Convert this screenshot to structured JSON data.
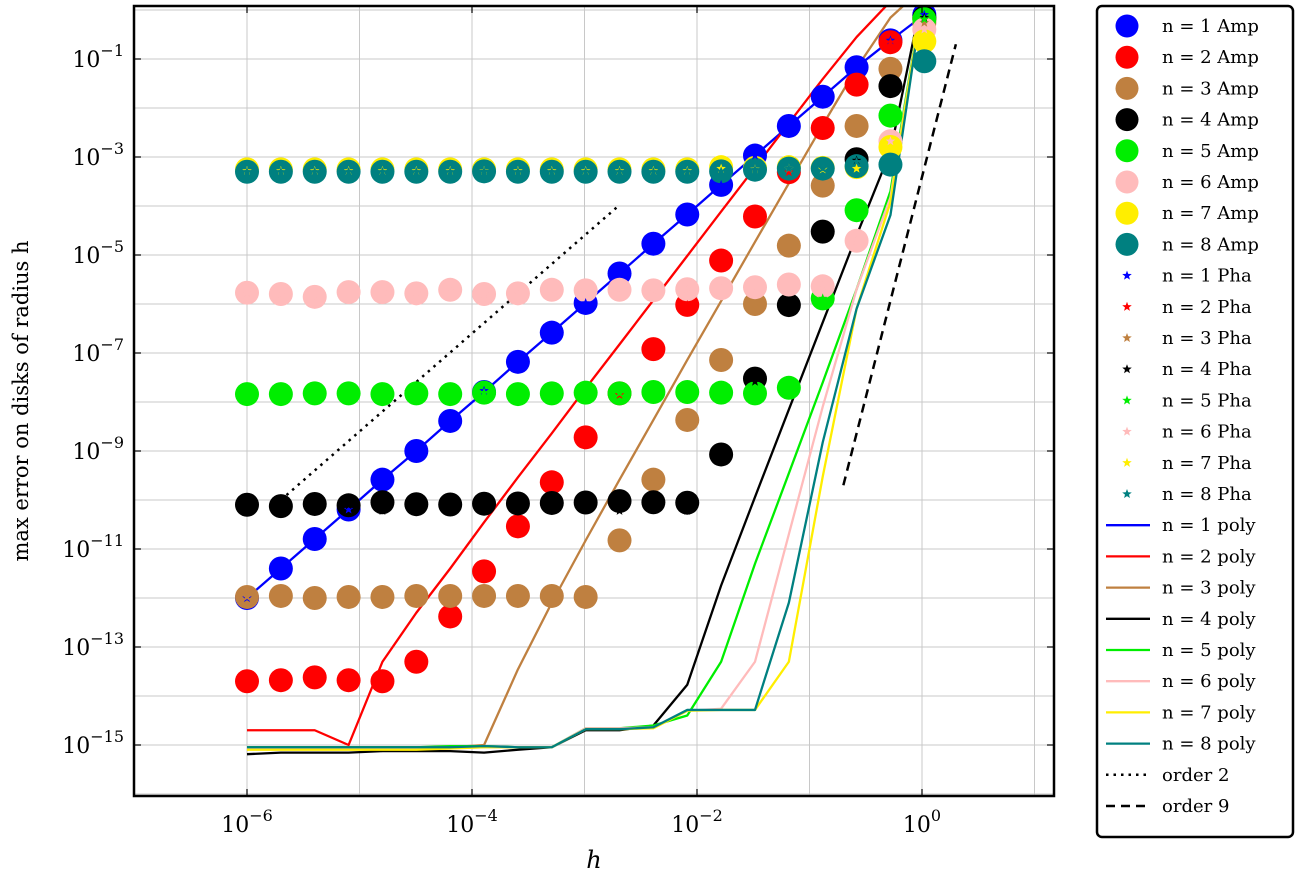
{
  "chart_data": {
    "type": "line",
    "xscale": "log",
    "yscale": "log",
    "xlabel": "h",
    "ylabel": "max error on disks of radius h",
    "xlim": [
      1.5e-07,
      20.0
    ],
    "ylim": [
      1e-16,
      1.0
    ],
    "grid": true,
    "legend_placement": "right-outside",
    "x_ticks": [
      {
        "value": 1e-06,
        "mant": "10",
        "exp": "−6"
      },
      {
        "value": 0.0001,
        "mant": "10",
        "exp": "−4"
      },
      {
        "value": 0.01,
        "mant": "10",
        "exp": "−2"
      },
      {
        "value": 1.0,
        "mant": "10",
        "exp": "0"
      }
    ],
    "y_ticks": [
      {
        "value": 1e-15,
        "mant": "10",
        "exp": "−15"
      },
      {
        "value": 1e-13,
        "mant": "10",
        "exp": "−13"
      },
      {
        "value": 1e-11,
        "mant": "10",
        "exp": "−11"
      },
      {
        "value": 1e-09,
        "mant": "10",
        "exp": "−9"
      },
      {
        "value": 1e-07,
        "mant": "10",
        "exp": "−7"
      },
      {
        "value": 1e-05,
        "mant": "10",
        "exp": "−5"
      },
      {
        "value": 0.001,
        "mant": "10",
        "exp": "−3"
      },
      {
        "value": 0.1,
        "mant": "10",
        "exp": "−1"
      }
    ],
    "x": [
      1e-06,
      2e-06,
      4e-06,
      8e-06,
      1.6e-05,
      3.2e-05,
      6.4e-05,
      0.000128,
      0.000256,
      0.000512,
      0.001024,
      0.002048,
      0.004096,
      0.008192,
      0.016384,
      0.032768,
      0.065536,
      0.131072,
      0.262144,
      0.524288,
      1.048576
    ],
    "series": [
      {
        "name": "n = 1 poly",
        "n": 1,
        "color": "#0000ff",
        "kind": "poly",
        "values": [
          1e-12,
          4e-12,
          1.6e-11,
          6.4e-11,
          2.6e-10,
          1e-09,
          4.1e-09,
          1.6e-08,
          6.6e-08,
          2.6e-07,
          1.05e-06,
          4.2e-06,
          1.7e-05,
          6.7e-05,
          0.00027,
          0.00107,
          0.0043,
          0.017,
          0.068,
          0.24,
          0.8
        ]
      },
      {
        "name": "n = 2 poly",
        "n": 2,
        "color": "#ff0000",
        "kind": "poly",
        "values": [
          2e-15,
          2e-15,
          2e-15,
          1e-15,
          5e-14,
          5e-13,
          4e-12,
          3.5e-11,
          2.9e-10,
          2.3e-09,
          1.9e-08,
          1.5e-07,
          1.2e-06,
          9.6e-06,
          7.7e-05,
          0.00061,
          0.0049,
          0.039,
          0.28,
          1.5,
          3.0
        ]
      },
      {
        "name": "n = 3 poly",
        "n": 3,
        "color": "#bf8040",
        "kind": "poly",
        "values": [
          9e-16,
          9e-16,
          9e-16,
          9e-16,
          9e-16,
          9e-16,
          9e-16,
          1e-15,
          3.5e-14,
          8e-13,
          1.5e-11,
          2.6e-10,
          4.3e-09,
          7.2e-08,
          1.15e-06,
          1.85e-05,
          0.00029,
          0.0045,
          0.065,
          0.7,
          3.0
        ]
      },
      {
        "name": "n = 4 poly",
        "n": 4,
        "color": "#000000",
        "kind": "poly",
        "values": [
          6.5e-16,
          7e-16,
          7e-16,
          7e-16,
          7.5e-16,
          7.5e-16,
          7.5e-16,
          7e-16,
          8e-16,
          9e-16,
          2e-15,
          2e-15,
          2.5e-15,
          1.7e-14,
          1.8e-12,
          1.15e-10,
          7e-09,
          4.2e-07,
          2.5e-05,
          0.0013,
          3.0
        ]
      },
      {
        "name": "n = 5 poly",
        "n": 5,
        "color": "#00ee00",
        "kind": "poly",
        "values": [
          9e-16,
          9e-16,
          9e-16,
          9e-16,
          9e-16,
          9e-16,
          9.5e-16,
          9.5e-16,
          9e-16,
          9e-16,
          2.2e-15,
          2.2e-15,
          2.5e-15,
          4e-15,
          5e-14,
          5e-12,
          3.5e-10,
          2.5e-08,
          2e-06,
          0.0002,
          3.0
        ]
      },
      {
        "name": "n = 6 poly",
        "n": 6,
        "color": "#ffbbbb",
        "kind": "poly",
        "values": [
          8.5e-16,
          8.5e-16,
          8.5e-16,
          8.5e-16,
          8.5e-16,
          8.5e-16,
          8.5e-16,
          9e-16,
          9e-16,
          9e-16,
          2.2e-15,
          2.2e-15,
          2.3e-15,
          5e-15,
          5.5e-15,
          5e-14,
          2e-11,
          8e-09,
          2e-06,
          0.00015,
          3.0
        ]
      },
      {
        "name": "n = 7 poly",
        "n": 7,
        "color": "#ffee00",
        "kind": "poly",
        "values": [
          8e-16,
          8e-16,
          8e-16,
          8e-16,
          8e-16,
          8e-16,
          8.5e-16,
          9e-16,
          9e-16,
          9e-16,
          2.1e-15,
          2.1e-15,
          2.2e-15,
          5e-15,
          5.2e-15,
          5.2e-15,
          5e-14,
          3e-10,
          8e-07,
          0.00012,
          3.0
        ]
      },
      {
        "name": "n = 8 poly",
        "n": 8,
        "color": "#008080",
        "kind": "poly",
        "values": [
          9e-16,
          9e-16,
          9e-16,
          9e-16,
          9e-16,
          9e-16,
          9e-16,
          9.5e-16,
          9e-16,
          9e-16,
          2.1e-15,
          2.1e-15,
          2.3e-15,
          5.2e-15,
          5.2e-15,
          5.2e-15,
          8e-13,
          1.5e-09,
          8e-07,
          6.5e-05,
          3.0
        ]
      },
      {
        "name": "n = 1 Amp",
        "n": 1,
        "color": "#0000ff",
        "kind": "amp",
        "values": [
          1e-12,
          4e-12,
          1.6e-11,
          6.4e-11,
          2.6e-10,
          1e-09,
          4.1e-09,
          1.6e-08,
          6.6e-08,
          2.6e-07,
          1.05e-06,
          4.2e-06,
          1.7e-05,
          6.7e-05,
          0.00027,
          0.00107,
          0.0043,
          0.017,
          0.068,
          0.24,
          0.8
        ]
      },
      {
        "name": "n = 2 Amp",
        "n": 2,
        "color": "#ff0000",
        "kind": "amp",
        "values": [
          2e-14,
          2.1e-14,
          2.4e-14,
          2.1e-14,
          2e-14,
          5e-14,
          4.2e-13,
          3.5e-12,
          2.9e-11,
          2.3e-10,
          1.9e-09,
          1.5e-08,
          1.2e-07,
          9.6e-07,
          7.7e-06,
          6.1e-05,
          0.00049,
          0.0039,
          0.03,
          0.22,
          0.65
        ]
      },
      {
        "name": "n = 3 Amp",
        "n": 3,
        "color": "#bf8040",
        "kind": "amp",
        "values": [
          1.05e-12,
          1.1e-12,
          1e-12,
          1.05e-12,
          1.05e-12,
          1.1e-12,
          1.1e-12,
          1.1e-12,
          1.1e-12,
          1.1e-12,
          1.05e-12,
          1.5e-11,
          2.6e-10,
          4.3e-09,
          7.2e-08,
          1e-06,
          1.55e-05,
          0.00026,
          0.0043,
          0.063,
          0.55
        ]
      },
      {
        "name": "n = 4 Amp",
        "n": 4,
        "color": "#000000",
        "kind": "amp",
        "values": [
          8e-11,
          7.5e-11,
          8.3e-11,
          7.8e-11,
          9e-11,
          8.2e-11,
          8.1e-11,
          8.4e-11,
          8.5e-11,
          8.7e-11,
          8.9e-11,
          9.5e-11,
          9e-11,
          8.8e-11,
          8.5e-10,
          3e-08,
          9.5e-07,
          3e-05,
          0.0009,
          0.028,
          0.7
        ]
      },
      {
        "name": "n = 5 Amp",
        "n": 5,
        "color": "#00ee00",
        "kind": "amp",
        "values": [
          1.45e-08,
          1.45e-08,
          1.5e-08,
          1.5e-08,
          1.45e-08,
          1.5e-08,
          1.45e-08,
          1.55e-08,
          1.45e-08,
          1.5e-08,
          1.55e-08,
          1.5e-08,
          1.6e-08,
          1.6e-08,
          1.55e-08,
          1.5e-08,
          1.95e-08,
          1.3e-06,
          8.2e-05,
          0.007,
          0.65
        ]
      },
      {
        "name": "n = 6 Amp",
        "n": 6,
        "color": "#ffbbbb",
        "kind": "amp",
        "values": [
          1.7e-06,
          1.6e-06,
          1.4e-06,
          1.75e-06,
          1.75e-06,
          1.65e-06,
          1.95e-06,
          1.6e-06,
          1.65e-06,
          1.95e-06,
          1.9e-06,
          1.95e-06,
          1.9e-06,
          2e-06,
          2.1e-06,
          2.2e-06,
          2.5e-06,
          2.3e-06,
          1.95e-05,
          0.0021,
          0.4
        ]
      },
      {
        "name": "n = 7 Amp",
        "n": 7,
        "color": "#ffee00",
        "kind": "amp",
        "values": [
          0.00056,
          0.00056,
          0.00056,
          0.00056,
          0.00056,
          0.00056,
          0.00056,
          0.00056,
          0.00056,
          0.00056,
          0.00056,
          0.00056,
          0.00056,
          0.00056,
          0.00062,
          0.0006,
          0.00062,
          0.0006,
          0.00062,
          0.0016,
          0.23
        ]
      },
      {
        "name": "n = 8 Amp",
        "n": 8,
        "color": "#008080",
        "kind": "amp",
        "values": [
          0.0005,
          0.0005,
          0.0005,
          0.0005,
          0.0005,
          0.0005,
          0.0005,
          0.00051,
          0.0005,
          0.0005,
          0.0005,
          0.0005,
          0.0005,
          0.0005,
          0.00051,
          0.00055,
          0.00058,
          0.00058,
          0.00065,
          0.0007,
          0.09
        ]
      },
      {
        "name": "n = 1 Pha",
        "n": 1,
        "color": "#0000ff",
        "kind": "pha",
        "values": [
          1e-12,
          4e-12,
          1.6e-11,
          6.4e-11,
          2.6e-10,
          1e-09,
          4.1e-09,
          1.7e-08,
          6.6e-08,
          2.6e-07,
          1.05e-06,
          4.2e-06,
          1.7e-05,
          6.7e-05,
          0.00027,
          0.00107,
          0.0043,
          0.017,
          0.068,
          0.24,
          0.8
        ]
      },
      {
        "name": "n = 2 Pha",
        "n": 2,
        "color": "#ff0000",
        "kind": "pha",
        "values": [
          2e-14,
          2.1e-14,
          2.4e-14,
          2.1e-14,
          2e-14,
          5e-14,
          4.2e-13,
          3.5e-12,
          2.9e-11,
          2.3e-10,
          1.9e-09,
          1.4e-08,
          1.2e-07,
          9.6e-07,
          7.7e-06,
          6.1e-05,
          0.00049,
          0.0039,
          0.03,
          0.22,
          0.65
        ]
      },
      {
        "name": "n = 3 Pha",
        "n": 3,
        "color": "#bf8040",
        "kind": "pha",
        "values": [
          1.05e-12,
          1.1e-12,
          1e-12,
          1.05e-12,
          1.05e-12,
          1.1e-12,
          1.1e-12,
          1.1e-12,
          1.1e-12,
          1.1e-12,
          1.05e-12,
          1.5e-11,
          2.6e-10,
          4.3e-09,
          7.2e-08,
          1e-06,
          1.55e-05,
          0.00026,
          0.0043,
          0.063,
          0.55
        ]
      },
      {
        "name": "n = 4 Pha",
        "n": 4,
        "color": "#000000",
        "kind": "pha",
        "values": [
          8e-11,
          7.5e-11,
          8.3e-11,
          7.8e-11,
          6e-11,
          8.2e-11,
          8.1e-11,
          8.4e-11,
          8.5e-11,
          8.7e-11,
          8.9e-11,
          6e-11,
          9e-11,
          6e-11,
          8.5e-10,
          2.6e-08,
          9.5e-07,
          3e-05,
          0.00085,
          0.028,
          0.7
        ]
      },
      {
        "name": "n = 5 Pha",
        "n": 5,
        "color": "#00ee00",
        "kind": "pha",
        "values": [
          1.45e-08,
          1.45e-08,
          1.5e-08,
          1.5e-08,
          1.45e-08,
          1.5e-08,
          1.45e-08,
          1.55e-08,
          1.45e-08,
          1.5e-08,
          1.35e-08,
          1.5e-08,
          1.4e-08,
          1.4e-08,
          1.55e-08,
          1.5e-08,
          1.95e-08,
          1.3e-06,
          8.2e-05,
          0.007,
          0.65
        ]
      },
      {
        "name": "n = 6 Pha",
        "n": 6,
        "color": "#ffbbbb",
        "kind": "pha",
        "values": [
          1.7e-06,
          1.6e-06,
          1.4e-06,
          1.75e-06,
          1.75e-06,
          1.65e-06,
          1.95e-06,
          1.6e-06,
          1.65e-06,
          1.95e-06,
          1.9e-06,
          1.95e-06,
          1.9e-06,
          2e-06,
          2.1e-06,
          2.2e-06,
          2.5e-06,
          2.3e-06,
          1.95e-05,
          0.0021,
          0.4
        ]
      },
      {
        "name": "n = 7 Pha",
        "n": 7,
        "color": "#ffee00",
        "kind": "pha",
        "values": [
          0.00052,
          0.00052,
          0.00052,
          0.00052,
          0.00052,
          0.00052,
          0.00052,
          0.00052,
          0.00052,
          0.00052,
          0.00052,
          0.00052,
          0.00052,
          0.00052,
          0.00058,
          0.00056,
          0.00058,
          0.00056,
          0.00058,
          0.0015,
          0.22
        ]
      },
      {
        "name": "n = 8 Pha",
        "n": 8,
        "color": "#008080",
        "kind": "pha",
        "values": [
          0.0005,
          0.0005,
          0.0005,
          0.0005,
          0.0005,
          0.0005,
          0.0005,
          0.00051,
          0.0005,
          0.0005,
          0.0005,
          0.0005,
          0.0005,
          0.0005,
          0.00051,
          0.00055,
          0.00058,
          0.00058,
          0.0008,
          0.0007,
          0.09
        ]
      }
    ],
    "reference_lines": [
      {
        "name": "order 2",
        "dash": "dotted",
        "x": [
          2e-06,
          0.002
        ],
        "y": [
          1e-10,
          0.0001
        ]
      },
      {
        "name": "order 9",
        "dash": "dashed",
        "x": [
          0.2,
          2.0
        ],
        "y": [
          2e-10,
          0.2
        ]
      }
    ],
    "legend": [
      {
        "label": "n = 1 Amp",
        "marker": "circle",
        "color": "#0000ff"
      },
      {
        "label": "n = 2 Amp",
        "marker": "circle",
        "color": "#ff0000"
      },
      {
        "label": "n = 3 Amp",
        "marker": "circle",
        "color": "#bf8040"
      },
      {
        "label": "n = 4 Amp",
        "marker": "circle",
        "color": "#000000"
      },
      {
        "label": "n = 5 Amp",
        "marker": "circle",
        "color": "#00ee00"
      },
      {
        "label": "n = 6 Amp",
        "marker": "circle",
        "color": "#ffbbbb"
      },
      {
        "label": "n = 7 Amp",
        "marker": "circle",
        "color": "#ffee00"
      },
      {
        "label": "n = 8 Amp",
        "marker": "circle",
        "color": "#008080"
      },
      {
        "label": "n = 1 Pha",
        "marker": "star",
        "color": "#0000ff"
      },
      {
        "label": "n = 2 Pha",
        "marker": "star",
        "color": "#ff0000"
      },
      {
        "label": "n = 3 Pha",
        "marker": "star",
        "color": "#bf8040"
      },
      {
        "label": "n = 4 Pha",
        "marker": "star",
        "color": "#000000"
      },
      {
        "label": "n = 5 Pha",
        "marker": "star",
        "color": "#00ee00"
      },
      {
        "label": "n = 6 Pha",
        "marker": "star",
        "color": "#ffbbbb"
      },
      {
        "label": "n = 7 Pha",
        "marker": "star",
        "color": "#ffee00"
      },
      {
        "label": "n = 8 Pha",
        "marker": "star",
        "color": "#008080"
      },
      {
        "label": "n = 1 poly",
        "marker": "line",
        "color": "#0000ff"
      },
      {
        "label": "n = 2 poly",
        "marker": "line",
        "color": "#ff0000"
      },
      {
        "label": "n = 3 poly",
        "marker": "line",
        "color": "#bf8040"
      },
      {
        "label": "n = 4 poly",
        "marker": "line",
        "color": "#000000"
      },
      {
        "label": "n = 5 poly",
        "marker": "line",
        "color": "#00ee00"
      },
      {
        "label": "n = 6 poly",
        "marker": "line",
        "color": "#ffbbbb"
      },
      {
        "label": "n = 7 poly",
        "marker": "line",
        "color": "#ffee00"
      },
      {
        "label": "n = 8 poly",
        "marker": "line",
        "color": "#008080"
      },
      {
        "label": "order 2",
        "marker": "dotted",
        "color": "#000000"
      },
      {
        "label": "order 9",
        "marker": "dashed",
        "color": "#000000"
      }
    ]
  }
}
